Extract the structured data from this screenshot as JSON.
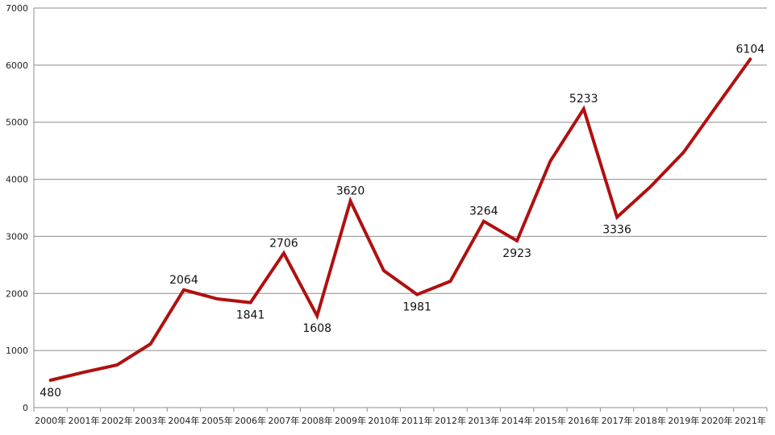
{
  "chart_data": {
    "type": "line",
    "title": "",
    "xlabel": "",
    "ylabel": "",
    "ylim": [
      0,
      7000
    ],
    "yticks": [
      "0",
      "1000",
      "2000",
      "3000",
      "4000",
      "5000",
      "6000",
      "7000"
    ],
    "grid": true,
    "legend": "none",
    "categories": [
      "2000年",
      "2001年",
      "2002年",
      "2003年",
      "2004年",
      "2005年",
      "2006年",
      "2007年",
      "2008年",
      "2009年",
      "2010年",
      "2011年",
      "2012年",
      "2013年",
      "2014年",
      "2015年",
      "2016年",
      "2017年",
      "2018年",
      "2019年",
      "2020年",
      "2021年"
    ],
    "series": [
      {
        "color": "#b01010",
        "values": [
          480,
          620,
          748,
          1115,
          2064,
          1905,
          1841,
          2706,
          1608,
          3620,
          2400,
          1981,
          2215,
          3264,
          2923,
          4318,
          5233,
          3336,
          3867,
          4474,
          5292,
          6104
        ]
      }
    ],
    "data_labels": [
      {
        "category": "2000年",
        "text": "480",
        "position": "below"
      },
      {
        "category": "2004年",
        "text": "2064",
        "position": "above"
      },
      {
        "category": "2006年",
        "text": "1841",
        "position": "below"
      },
      {
        "category": "2007年",
        "text": "2706",
        "position": "above"
      },
      {
        "category": "2008年",
        "text": "1608",
        "position": "below"
      },
      {
        "category": "2009年",
        "text": "3620",
        "position": "above"
      },
      {
        "category": "2011年",
        "text": "1981",
        "position": "below"
      },
      {
        "category": "2013年",
        "text": "3264",
        "position": "above"
      },
      {
        "category": "2014年",
        "text": "2923",
        "position": "below"
      },
      {
        "category": "2016年",
        "text": "5233",
        "position": "above"
      },
      {
        "category": "2017年",
        "text": "3336",
        "position": "below"
      },
      {
        "category": "2021年",
        "text": "6104",
        "position": "above"
      }
    ]
  }
}
